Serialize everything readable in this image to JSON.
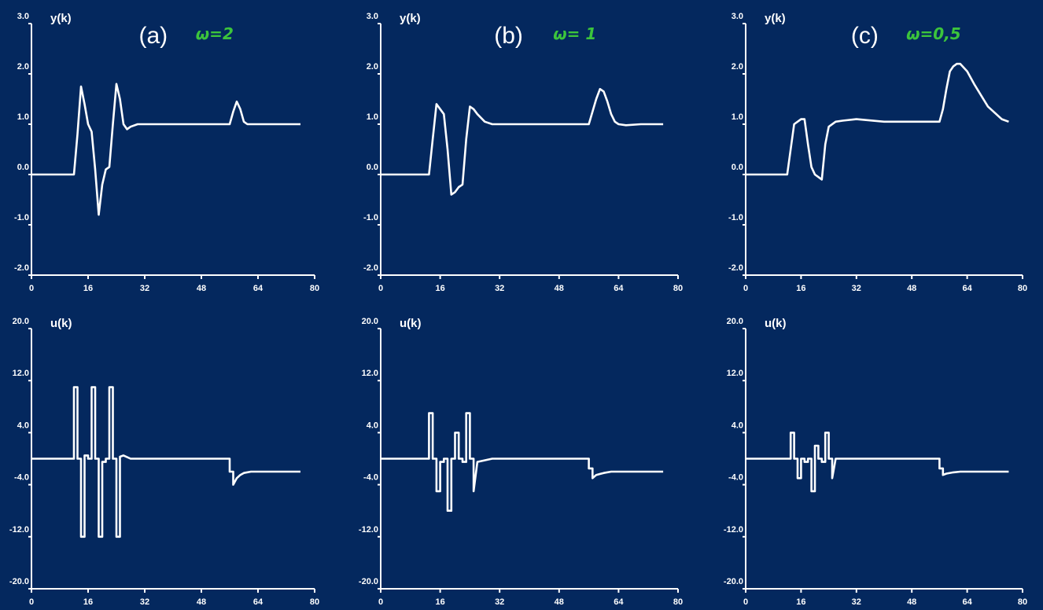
{
  "chart_data": [
    {
      "type": "line",
      "row": "top",
      "col": 0,
      "panel_label": "(a)",
      "annotation": "ω=2",
      "annotation_color": "#3cc43c",
      "ylabel": "y(k)",
      "xlim": [
        0,
        80
      ],
      "ylim": [
        -2,
        3
      ],
      "xticks": [
        "0",
        "16",
        "32",
        "48",
        "64",
        "80"
      ],
      "yticks": [
        "3.0",
        "2.0",
        "1.0",
        "0.0",
        "-1.0",
        "-2.0"
      ],
      "x": [
        0,
        12,
        13,
        14,
        15,
        16,
        17,
        18,
        19,
        20,
        21,
        22,
        23,
        24,
        25,
        26,
        27,
        28,
        30,
        40,
        50,
        56,
        57,
        58,
        59,
        60,
        61,
        62,
        64,
        70,
        76
      ],
      "y": [
        0,
        0,
        0.8,
        1.75,
        1.4,
        1.0,
        0.85,
        0.1,
        -0.8,
        -0.2,
        0.1,
        0.15,
        1.0,
        1.8,
        1.5,
        1.0,
        0.9,
        0.95,
        1.0,
        1.0,
        1.0,
        1.0,
        1.25,
        1.45,
        1.3,
        1.05,
        1.0,
        1.0,
        1.0,
        1.0,
        1.0
      ]
    },
    {
      "type": "line",
      "row": "top",
      "col": 1,
      "panel_label": "(b)",
      "annotation": "ω= 1",
      "annotation_color": "#3cc43c",
      "ylabel": "y(k)",
      "xlim": [
        0,
        80
      ],
      "ylim": [
        -2,
        3
      ],
      "xticks": [
        "0",
        "16",
        "32",
        "48",
        "64",
        "80"
      ],
      "yticks": [
        "3.0",
        "2.0",
        "1.0",
        "0.0",
        "-1.0",
        "-2.0"
      ],
      "x": [
        0,
        13,
        14,
        15,
        16,
        17,
        18,
        19,
        20,
        21,
        22,
        23,
        24,
        25,
        26,
        28,
        30,
        40,
        50,
        56,
        57,
        58,
        59,
        60,
        61,
        62,
        63,
        64,
        66,
        70,
        76
      ],
      "y": [
        0,
        0,
        0.7,
        1.4,
        1.3,
        1.2,
        0.5,
        -0.4,
        -0.35,
        -0.25,
        -0.2,
        0.7,
        1.35,
        1.3,
        1.2,
        1.05,
        1.0,
        1.0,
        1.0,
        1.0,
        1.25,
        1.5,
        1.7,
        1.65,
        1.45,
        1.2,
        1.05,
        1.0,
        0.98,
        1.0,
        1.0
      ]
    },
    {
      "type": "line",
      "row": "top",
      "col": 2,
      "panel_label": "(c)",
      "annotation": "ω=0,5",
      "annotation_color": "#3cc43c",
      "ylabel": "y(k)",
      "xlim": [
        0,
        80
      ],
      "ylim": [
        -2,
        3
      ],
      "xticks": [
        "0",
        "16",
        "32",
        "48",
        "64",
        "80"
      ],
      "yticks": [
        "3.0",
        "2.0",
        "1.0",
        "0.0",
        "-1.0",
        "-2.0"
      ],
      "x": [
        0,
        12,
        13,
        14,
        16,
        17,
        18,
        19,
        20,
        21,
        22,
        23,
        24,
        26,
        28,
        32,
        40,
        48,
        56,
        57,
        58,
        59,
        60,
        61,
        62,
        64,
        66,
        70,
        74,
        76
      ],
      "y": [
        0,
        0,
        0.5,
        1.0,
        1.1,
        1.1,
        0.6,
        0.15,
        0.0,
        -0.05,
        -0.1,
        0.6,
        0.95,
        1.05,
        1.07,
        1.1,
        1.05,
        1.05,
        1.05,
        1.3,
        1.7,
        2.05,
        2.15,
        2.2,
        2.2,
        2.05,
        1.8,
        1.35,
        1.1,
        1.05
      ]
    },
    {
      "type": "line",
      "row": "bottom",
      "col": 0,
      "ylabel": "u(k)",
      "xlim": [
        0,
        80
      ],
      "ylim": [
        -20,
        20
      ],
      "xticks": [
        "0",
        "16",
        "32",
        "48",
        "64",
        "80"
      ],
      "yticks": [
        "20.0",
        "12.0",
        "4.0",
        "-4.0",
        "-12.0",
        "-20.0"
      ],
      "x": [
        0,
        12,
        12,
        13,
        13,
        14,
        14,
        15,
        15,
        16,
        16,
        17,
        17,
        18,
        18,
        19,
        19,
        20,
        20,
        21,
        21,
        22,
        22,
        23,
        23,
        24,
        24,
        25,
        25,
        26,
        28,
        30,
        50,
        56,
        56,
        57,
        57,
        58,
        59,
        60,
        62,
        76
      ],
      "y": [
        0,
        0,
        11,
        11,
        0,
        0,
        -12,
        -12,
        0.5,
        0.5,
        0,
        0,
        11,
        11,
        0,
        0,
        -12,
        -12,
        -0.5,
        -0.5,
        0,
        0,
        11,
        11,
        0,
        0,
        -12,
        -12,
        0.3,
        0.5,
        0,
        0,
        0,
        0,
        -2,
        -2,
        -4,
        -3,
        -2.5,
        -2.2,
        -2,
        -2
      ]
    },
    {
      "type": "line",
      "row": "bottom",
      "col": 1,
      "ylabel": "u(k)",
      "xlim": [
        0,
        80
      ],
      "ylim": [
        -20,
        20
      ],
      "xticks": [
        "0",
        "16",
        "32",
        "48",
        "64",
        "80"
      ],
      "yticks": [
        "20.0",
        "12.0",
        "4.0",
        "-4.0",
        "-12.0",
        "-20.0"
      ],
      "x": [
        0,
        13,
        13,
        14,
        14,
        15,
        15,
        16,
        16,
        17,
        17,
        18,
        18,
        19,
        19,
        20,
        20,
        21,
        21,
        22,
        22,
        23,
        23,
        24,
        24,
        25,
        25,
        26,
        30,
        50,
        56,
        56,
        57,
        57,
        58,
        60,
        62,
        76
      ],
      "y": [
        0,
        0,
        7,
        7,
        0,
        0,
        -5,
        -5,
        -0.5,
        -0.5,
        0,
        0,
        -8,
        -8,
        0,
        0,
        4,
        4,
        0,
        0,
        -0.5,
        -0.5,
        7,
        7,
        0,
        0,
        -5,
        -0.5,
        0,
        0,
        0,
        -1.5,
        -1.5,
        -3,
        -2.5,
        -2.2,
        -2,
        -2
      ]
    },
    {
      "type": "line",
      "row": "bottom",
      "col": 2,
      "ylabel": "u(k)",
      "xlim": [
        0,
        80
      ],
      "ylim": [
        -20,
        20
      ],
      "xticks": [
        "0",
        "16",
        "32",
        "48",
        "64",
        "80"
      ],
      "yticks": [
        "20.0",
        "12.0",
        "4.0",
        "-4.0",
        "-12.0",
        "-20.0"
      ],
      "x": [
        0,
        13,
        13,
        14,
        14,
        15,
        15,
        16,
        16,
        17,
        17,
        18,
        18,
        19,
        19,
        20,
        20,
        21,
        21,
        22,
        22,
        23,
        23,
        24,
        24,
        25,
        25,
        26,
        30,
        50,
        56,
        56,
        57,
        57,
        58,
        60,
        62,
        76
      ],
      "y": [
        0,
        0,
        4,
        4,
        0,
        0,
        -3,
        -3,
        0,
        0,
        -0.5,
        -0.5,
        0,
        0,
        -5,
        -5,
        2,
        2,
        0,
        0,
        -0.5,
        -0.5,
        4,
        4,
        0,
        0,
        -3,
        0,
        0,
        0,
        0,
        -1.5,
        -1.5,
        -2.5,
        -2.3,
        -2.1,
        -2,
        -2
      ]
    }
  ]
}
